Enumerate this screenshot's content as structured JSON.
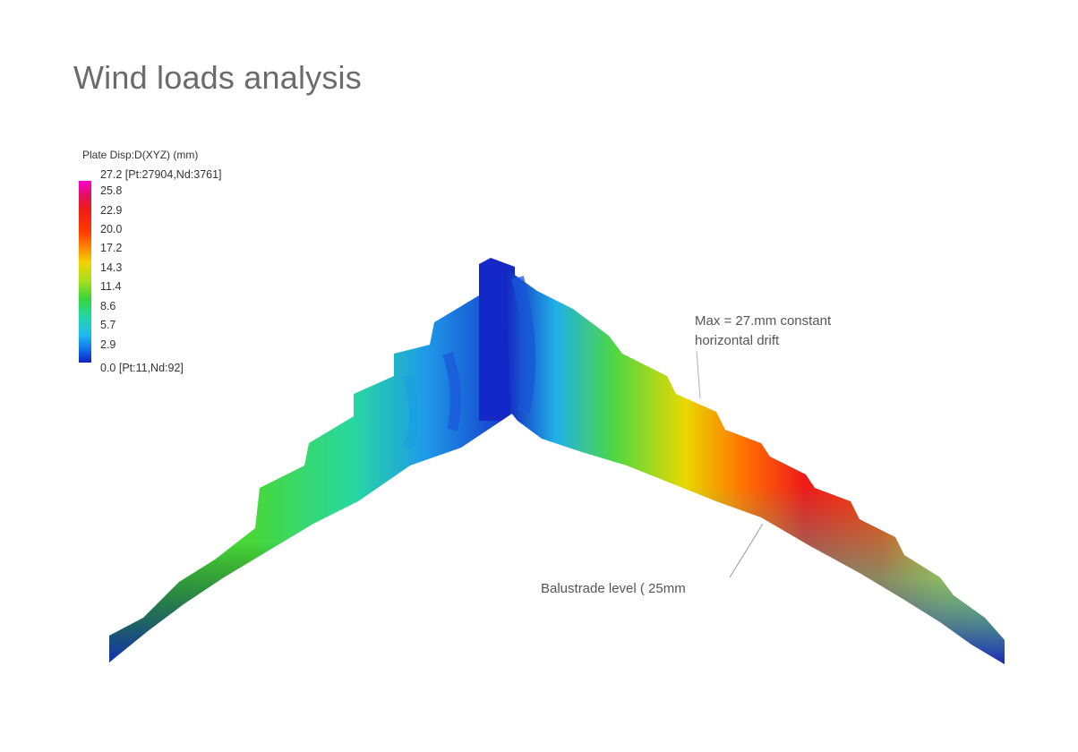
{
  "title": "Wind loads analysis",
  "legend": {
    "title": "Plate Disp:D(XYZ)  (mm)",
    "max_label": "27.2 [Pt:27904,Nd:3761]",
    "min_label": "0.0 [Pt:11,Nd:92]",
    "ticks": [
      "25.8",
      "22.9",
      "20.0",
      "17.2",
      "14.3",
      "11.4",
      "8.6",
      "5.7",
      "2.9"
    ],
    "colors": [
      "#ff00cc",
      "#ee1a1a",
      "#ff3a00",
      "#ff7a00",
      "#f2d400",
      "#a8e020",
      "#38d438",
      "#20d8a8",
      "#20b8f0",
      "#1070e8",
      "#1020c0"
    ]
  },
  "annotations": {
    "max_drift": [
      "Max = 27.mm constant",
      "horizontal drift"
    ],
    "balustrade": "Balustrade level ( 25mm"
  }
}
